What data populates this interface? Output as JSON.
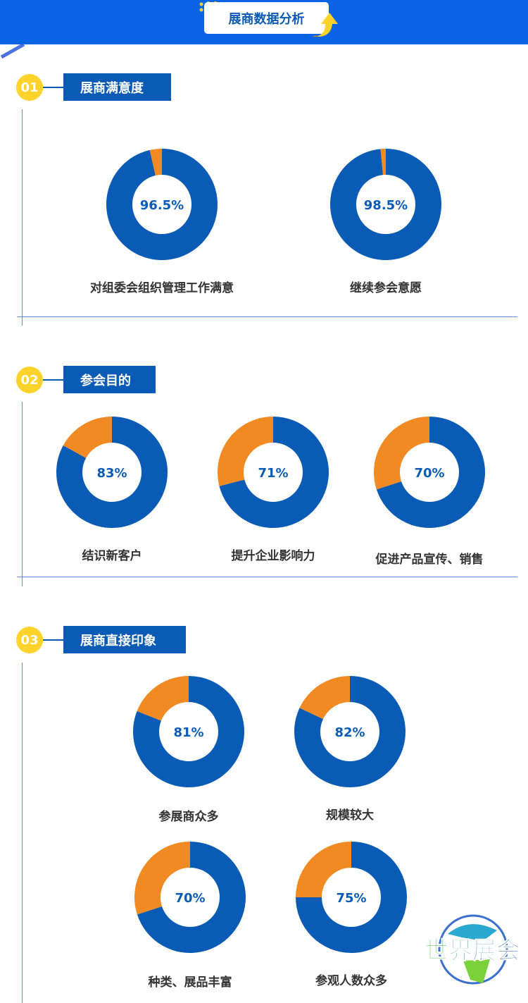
{
  "header": {
    "title": "展商数据分析"
  },
  "colors": {
    "primary": "#0a5bb5",
    "accent": "#f28a24",
    "header_bg": "#0b63e5",
    "badge": "#fdd22a"
  },
  "sections": [
    {
      "num": "01",
      "title": "展商满意度"
    },
    {
      "num": "02",
      "title": "参会目的"
    },
    {
      "num": "03",
      "title": "展商直接印象"
    }
  ],
  "chart_data": [
    {
      "type": "pie",
      "section": "01",
      "label": "对组委会组织管理工作满意",
      "value": 96.5,
      "value_label": "96.5%"
    },
    {
      "type": "pie",
      "section": "01",
      "label": "继续参会意愿",
      "value": 98.5,
      "value_label": "98.5%"
    },
    {
      "type": "pie",
      "section": "02",
      "label": "结识新客户",
      "value": 83,
      "value_label": "83%"
    },
    {
      "type": "pie",
      "section": "02",
      "label": "提升企业影响力",
      "value": 71,
      "value_label": "71%"
    },
    {
      "type": "pie",
      "section": "02",
      "label": "促进产品宣传、销售",
      "value": 70,
      "value_label": "70%"
    },
    {
      "type": "pie",
      "section": "03",
      "label": "参展商众多",
      "value": 81,
      "value_label": "81%"
    },
    {
      "type": "pie",
      "section": "03",
      "label": "规模较大",
      "value": 82,
      "value_label": "82%"
    },
    {
      "type": "pie",
      "section": "03",
      "label": "种类、展品丰富",
      "value": 70,
      "value_label": "70%"
    },
    {
      "type": "pie",
      "section": "03",
      "label": "参观人数众多",
      "value": 75,
      "value_label": "75%"
    }
  ],
  "logo": {
    "text": "世界展会"
  }
}
